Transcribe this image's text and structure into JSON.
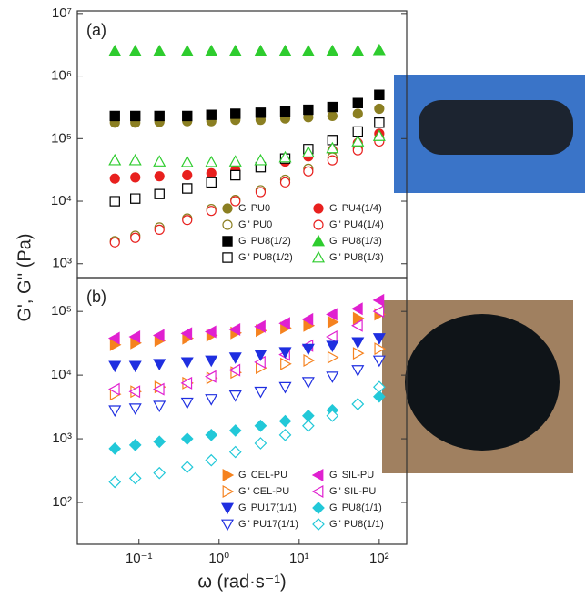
{
  "chart_data": [
    {
      "type": "scatter",
      "label": "(a)",
      "ylabel": "G', G'' (Pa)",
      "log_x": true,
      "log_y": true,
      "legend": "lower right",
      "x": [
        0.05,
        0.09,
        0.18,
        0.4,
        0.8,
        1.6,
        3.3,
        6.7,
        13,
        26,
        54,
        100
      ],
      "xlim": [
        0.017,
        220
      ],
      "ylim": [
        600,
        11000000
      ],
      "yticks": [
        {
          "value": 1000,
          "label": "10³"
        },
        {
          "value": 10000,
          "label": "10⁴"
        },
        {
          "value": 100000,
          "label": "10⁵"
        },
        {
          "value": 1000000,
          "label": "10⁶"
        },
        {
          "value": 10000000,
          "label": "10⁷"
        }
      ],
      "series": [
        {
          "name": "G' PU0",
          "color": "#8b7f22",
          "marker": "circle",
          "filled": true,
          "values": [
            180000,
            180000,
            185000,
            190000,
            190000,
            200000,
            200000,
            210000,
            220000,
            230000,
            250000,
            300000
          ]
        },
        {
          "name": "G' PU4(1/4)",
          "color": "#e8201e",
          "marker": "circle",
          "filled": true,
          "values": [
            23000,
            24000,
            25000,
            26000,
            28000,
            31000,
            36000,
            43000,
            52000,
            65000,
            85000,
            120000
          ]
        },
        {
          "name": "G'' PU0",
          "color": "#8b7f22",
          "marker": "circle",
          "filled": false,
          "values": [
            2300,
            2800,
            3800,
            5300,
            7500,
            10500,
            15000,
            22000,
            33000,
            50000,
            70000,
            100000
          ]
        },
        {
          "name": "G'' PU4(1/4)",
          "color": "#e8201e",
          "marker": "circle",
          "filled": false,
          "values": [
            2200,
            2600,
            3500,
            5000,
            7000,
            10000,
            14000,
            20000,
            30000,
            45000,
            65000,
            90000
          ]
        },
        {
          "name": "G' PU8(1/2)",
          "color": "#000000",
          "marker": "square",
          "filled": true,
          "values": [
            230000,
            230000,
            230000,
            230000,
            240000,
            250000,
            260000,
            270000,
            290000,
            320000,
            370000,
            500000
          ]
        },
        {
          "name": "G' PU8(1/3)",
          "color": "#2ecc2e",
          "marker": "triangle-up",
          "filled": true,
          "values": [
            2500000,
            2500000,
            2500000,
            2500000,
            2500000,
            2500000,
            2500000,
            2500000,
            2500000,
            2500000,
            2500000,
            2600000
          ]
        },
        {
          "name": "G'' PU8(1/2)",
          "color": "#000000",
          "marker": "square",
          "filled": false,
          "values": [
            10000,
            11000,
            13000,
            16000,
            20000,
            26000,
            35000,
            48000,
            68000,
            95000,
            130000,
            180000
          ]
        },
        {
          "name": "G'' PU8(1/3)",
          "color": "#2ecc2e",
          "marker": "triangle-up",
          "filled": false,
          "values": [
            45000,
            45000,
            43000,
            42000,
            42000,
            43000,
            45000,
            50000,
            60000,
            70000,
            90000,
            110000
          ]
        }
      ]
    },
    {
      "type": "scatter",
      "label": "(b)",
      "xlabel": "ω (rad·s⁻¹)",
      "log_x": true,
      "log_y": true,
      "legend": "lower right",
      "x": [
        0.05,
        0.09,
        0.18,
        0.4,
        0.8,
        1.6,
        3.3,
        6.7,
        13,
        26,
        54,
        100
      ],
      "xlim": [
        0.017,
        220
      ],
      "ylim": [
        22,
        340000
      ],
      "xticks": [
        {
          "value": 0.1,
          "label": "10⁻¹"
        },
        {
          "value": 1,
          "label": "10⁰"
        },
        {
          "value": 10,
          "label": "10¹"
        },
        {
          "value": 100,
          "label": "10²"
        }
      ],
      "yticks": [
        {
          "value": 100,
          "label": "10²"
        },
        {
          "value": 1000,
          "label": "10³"
        },
        {
          "value": 10000,
          "label": "10⁴"
        },
        {
          "value": 100000,
          "label": "10⁵"
        }
      ],
      "series": [
        {
          "name": "G' CEL-PU",
          "color": "#f5821f",
          "marker": "triangle-right",
          "filled": true,
          "values": [
            30000,
            32000,
            35000,
            38000,
            42000,
            46000,
            50000,
            55000,
            60000,
            68000,
            78000,
            90000
          ]
        },
        {
          "name": "G' SIL-PU",
          "color": "#e020d0",
          "marker": "triangle-left",
          "filled": true,
          "values": [
            38000,
            40000,
            42000,
            45000,
            48000,
            52000,
            58000,
            65000,
            75000,
            90000,
            110000,
            150000
          ]
        },
        {
          "name": "G'' CEL-PU",
          "color": "#f5821f",
          "marker": "triangle-right",
          "filled": false,
          "values": [
            5000,
            5500,
            6500,
            7500,
            9000,
            11000,
            13000,
            15000,
            17000,
            19000,
            22000,
            26000
          ]
        },
        {
          "name": "G'' SIL-PU",
          "color": "#e020d0",
          "marker": "triangle-left",
          "filled": false,
          "values": [
            6000,
            5500,
            6000,
            7500,
            9500,
            12000,
            16000,
            21000,
            29000,
            40000,
            60000,
            100000
          ]
        },
        {
          "name": "G' PU17(1/1)",
          "color": "#1f2fe0",
          "marker": "triangle-down",
          "filled": true,
          "values": [
            14000,
            14000,
            15000,
            16000,
            17000,
            19000,
            21000,
            23000,
            26000,
            29000,
            33000,
            38000
          ]
        },
        {
          "name": "G' PU8(1/1)",
          "color": "#22c8d8",
          "marker": "diamond",
          "filled": true,
          "values": [
            700,
            800,
            900,
            1000,
            1150,
            1350,
            1600,
            1900,
            2300,
            2800,
            3500,
            4600
          ]
        },
        {
          "name": "G'' PU17(1/1)",
          "color": "#1f2fe0",
          "marker": "triangle-down",
          "filled": false,
          "values": [
            2800,
            3000,
            3300,
            3700,
            4200,
            4800,
            5500,
            6500,
            7800,
            9500,
            12000,
            17000
          ]
        },
        {
          "name": "G'' PU8(1/1)",
          "color": "#22c8d8",
          "marker": "diamond",
          "filled": false,
          "values": [
            210,
            240,
            290,
            360,
            460,
            620,
            850,
            1150,
            1600,
            2300,
            3500,
            6500
          ]
        }
      ]
    }
  ]
}
